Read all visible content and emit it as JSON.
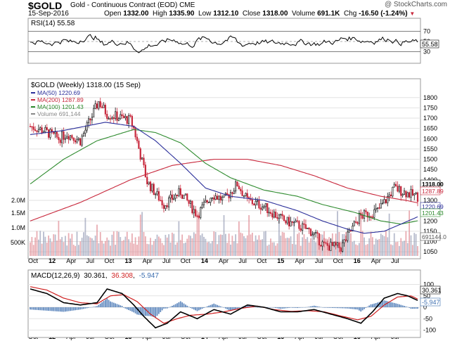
{
  "header": {
    "symbol": "$GOLD",
    "description": "Gold - Continuous Contract (EOD)",
    "exchange": "CME",
    "date": "15-Sep-2016",
    "open_label": "Open",
    "open": "1332.00",
    "high_label": "High",
    "high": "1335.90",
    "low_label": "Low",
    "low": "1312.10",
    "close_label": "Close",
    "close": "1318.00",
    "volume_label": "Volume",
    "volume": "691.1K",
    "chg_label": "Chg",
    "chg": "-16.50 (-1.24%)",
    "copyright": "@ StockCharts.com"
  },
  "colors": {
    "ma50": "#2b2f9a",
    "ma200": "#c8283c",
    "ma100": "#2e8b2e",
    "up_candle": "#111111",
    "down_candle": "#c8283c",
    "volume_up": "#9aa0b8",
    "volume_down": "#e08a93",
    "macd_line": "#000000",
    "signal_line": "#d02020",
    "histogram": "#3d6fb0"
  },
  "chart_data": [
    {
      "type": "line",
      "panel": "RSI",
      "label": "RSI(14) 55.58",
      "current_value": "55.58",
      "y_ticks": [
        "70",
        "50",
        "30"
      ],
      "ylim": [
        10,
        90
      ]
    },
    {
      "type": "candlestick",
      "panel": "price",
      "title": "$GOLD (Weekly) 1318.00 (15 Sep)",
      "legend": [
        {
          "name": "MA(50) 1220.69",
          "color": "#2b2f9a"
        },
        {
          "name": "MA(200) 1287.89",
          "color": "#c8283c"
        },
        {
          "name": "MA(100) 1201.43",
          "color": "#2e8b2e"
        },
        {
          "name": "Volume 691,144",
          "color": "#888888"
        }
      ],
      "y_ticks": [
        "1800",
        "1750",
        "1700",
        "1650",
        "1600",
        "1550",
        "1500",
        "1450",
        "1400",
        "1350",
        "1300",
        "1250",
        "1200",
        "1150",
        "1100",
        "1050"
      ],
      "ylim": [
        1030,
        1830
      ],
      "value_labels": [
        "1318.00",
        "1287.89",
        "1220.69",
        "1201.43",
        "691144.0"
      ],
      "volume_ticks": [
        "2.0M",
        "1.5M",
        "1.0M",
        "500K"
      ],
      "anchors_x": [
        0,
        8,
        17,
        22,
        30,
        41,
        46,
        60,
        62,
        70,
        80,
        90,
        100,
        109,
        116,
        124,
        130,
        140,
        152,
        160,
        168,
        176,
        186,
        197,
        208,
        212,
        218,
        224,
        232
      ],
      "anchors_close": [
        1660,
        1640,
        1600,
        1625,
        1590,
        1780,
        1720,
        1690,
        1650,
        1390,
        1280,
        1340,
        1230,
        1330,
        1300,
        1380,
        1300,
        1270,
        1200,
        1180,
        1150,
        1080,
        1070,
        1220,
        1250,
        1290,
        1360,
        1340,
        1318
      ],
      "ma50_anchors": [
        [
          0,
          1620
        ],
        [
          20,
          1640
        ],
        [
          45,
          1680
        ],
        [
          62,
          1660
        ],
        [
          75,
          1590
        ],
        [
          90,
          1480
        ],
        [
          105,
          1360
        ],
        [
          120,
          1320
        ],
        [
          140,
          1300
        ],
        [
          160,
          1250
        ],
        [
          175,
          1200
        ],
        [
          190,
          1160
        ],
        [
          200,
          1140
        ],
        [
          212,
          1150
        ],
        [
          232,
          1220
        ]
      ],
      "ma100_anchors": [
        [
          0,
          1380
        ],
        [
          20,
          1500
        ],
        [
          40,
          1590
        ],
        [
          62,
          1645
        ],
        [
          75,
          1630
        ],
        [
          90,
          1580
        ],
        [
          105,
          1480
        ],
        [
          120,
          1410
        ],
        [
          140,
          1350
        ],
        [
          160,
          1320
        ],
        [
          175,
          1280
        ],
        [
          195,
          1240
        ],
        [
          210,
          1200
        ],
        [
          222,
          1185
        ],
        [
          232,
          1201
        ]
      ],
      "ma200_anchors": [
        [
          0,
          1200
        ],
        [
          30,
          1290
        ],
        [
          60,
          1400
        ],
        [
          85,
          1470
        ],
        [
          110,
          1500
        ],
        [
          130,
          1500
        ],
        [
          150,
          1470
        ],
        [
          170,
          1420
        ],
        [
          190,
          1360
        ],
        [
          210,
          1320
        ],
        [
          225,
          1300
        ],
        [
          232,
          1288
        ]
      ]
    },
    {
      "type": "line",
      "panel": "MACD",
      "label_prefix": "MACD(12,26,9)",
      "macd_value": "30.361",
      "signal_value": "36.308",
      "hist_value": "-5.947",
      "y_ticks": [
        "100",
        "50",
        "0",
        "-50",
        "-100"
      ],
      "ylim": [
        -120,
        120
      ],
      "macd_anchors": [
        [
          0,
          80
        ],
        [
          10,
          60
        ],
        [
          20,
          20
        ],
        [
          30,
          10
        ],
        [
          40,
          20
        ],
        [
          46,
          80
        ],
        [
          55,
          60
        ],
        [
          62,
          10
        ],
        [
          68,
          -40
        ],
        [
          75,
          -90
        ],
        [
          82,
          -70
        ],
        [
          90,
          -20
        ],
        [
          100,
          -50
        ],
        [
          110,
          -10
        ],
        [
          120,
          -30
        ],
        [
          130,
          10
        ],
        [
          140,
          0
        ],
        [
          150,
          -20
        ],
        [
          160,
          -20
        ],
        [
          170,
          -10
        ],
        [
          180,
          -30
        ],
        [
          190,
          -50
        ],
        [
          198,
          -70
        ],
        [
          205,
          -20
        ],
        [
          212,
          40
        ],
        [
          220,
          60
        ],
        [
          226,
          50
        ],
        [
          232,
          30
        ]
      ],
      "signal_anchors": [
        [
          0,
          90
        ],
        [
          10,
          75
        ],
        [
          20,
          40
        ],
        [
          30,
          20
        ],
        [
          40,
          15
        ],
        [
          48,
          50
        ],
        [
          56,
          55
        ],
        [
          64,
          25
        ],
        [
          72,
          -30
        ],
        [
          80,
          -70
        ],
        [
          88,
          -50
        ],
        [
          96,
          -35
        ],
        [
          106,
          -30
        ],
        [
          116,
          -20
        ],
        [
          126,
          -5
        ],
        [
          136,
          5
        ],
        [
          146,
          -10
        ],
        [
          156,
          -18
        ],
        [
          166,
          -15
        ],
        [
          176,
          -20
        ],
        [
          186,
          -38
        ],
        [
          196,
          -55
        ],
        [
          204,
          -40
        ],
        [
          212,
          10
        ],
        [
          220,
          45
        ],
        [
          228,
          50
        ],
        [
          232,
          36
        ]
      ]
    }
  ],
  "x_axis": {
    "labels": [
      "Oct",
      "12",
      "Apr",
      "Jul",
      "Oct",
      "13",
      "Apr",
      "Jul",
      "Oct",
      "14",
      "Apr",
      "Jul",
      "Oct",
      "15",
      "Apr",
      "Jul",
      "Oct",
      "16",
      "Apr",
      "Jul"
    ],
    "bold": [
      "12",
      "13",
      "14",
      "15",
      "16"
    ]
  }
}
